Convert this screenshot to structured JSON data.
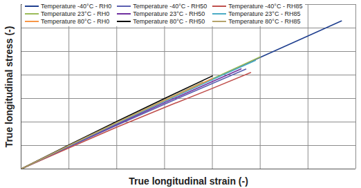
{
  "chart_data": {
    "type": "line",
    "x_label": "True longitudinal strain (-)",
    "y_label": "True longitudinal stress (-)",
    "xlim": [
      0,
      7
    ],
    "ylim": [
      0,
      7
    ],
    "xticks": [
      0,
      1,
      2,
      3,
      4,
      5,
      6,
      7
    ],
    "yticks": [
      0,
      1,
      2,
      3,
      4,
      5,
      6,
      7
    ],
    "grid": true,
    "tick_labels": false,
    "legend": "top-left",
    "series": [
      {
        "name": "Temperature -40°C - RH0",
        "color": "#1f3f8f",
        "x": [
          0,
          1,
          2,
          3,
          4,
          5,
          6,
          6.7
        ],
        "values": [
          0,
          0.97,
          1.93,
          2.88,
          3.82,
          4.75,
          5.66,
          6.3
        ]
      },
      {
        "name": "Temperature -40°C - RH50",
        "color": "#5a5fb0",
        "x": [
          0,
          1,
          2,
          3,
          4,
          4.7
        ],
        "values": [
          0,
          0.94,
          1.86,
          2.76,
          3.64,
          4.25
        ]
      },
      {
        "name": "Temperature -40°C - RH85",
        "color": "#c0504d",
        "x": [
          0,
          1,
          2,
          3,
          4,
          4.8
        ],
        "values": [
          0,
          0.9,
          1.78,
          2.62,
          3.43,
          4.1
        ]
      },
      {
        "name": "Temperature 23°C - RH0",
        "color": "#9bbb59",
        "x": [
          0,
          1,
          2,
          3,
          4,
          5
        ],
        "values": [
          0,
          0.98,
          1.95,
          2.9,
          3.84,
          4.77
        ]
      },
      {
        "name": "Temperature 23°C - RH50",
        "color": "#7030a0",
        "x": [
          0,
          1,
          2,
          3,
          4,
          4.6
        ],
        "values": [
          0,
          0.96,
          1.9,
          2.82,
          3.72,
          4.26
        ]
      },
      {
        "name": "Temperature 23°C - RH85",
        "color": "#4bacc6",
        "x": [
          0,
          1,
          2,
          3,
          4,
          4.9
        ],
        "values": [
          0,
          0.98,
          1.94,
          2.88,
          3.8,
          4.62
        ]
      },
      {
        "name": "Temperature 80°C - RH0",
        "color": "#f79646",
        "x": [
          0,
          1,
          2,
          3,
          4
        ],
        "values": [
          0,
          1.0,
          1.97,
          2.92,
          3.85
        ]
      },
      {
        "name": "Temperature 80°C - RH50",
        "color": "#000000",
        "x": [
          0,
          1,
          2,
          3,
          4
        ],
        "values": [
          0,
          1.02,
          2.02,
          3.0,
          3.96
        ]
      },
      {
        "name": "Temperature 80°C - RH85",
        "color": "#b5a36a",
        "x": [
          0,
          1,
          2,
          3,
          3.8
        ],
        "values": [
          0,
          1.0,
          1.98,
          2.94,
          3.7
        ]
      }
    ]
  }
}
